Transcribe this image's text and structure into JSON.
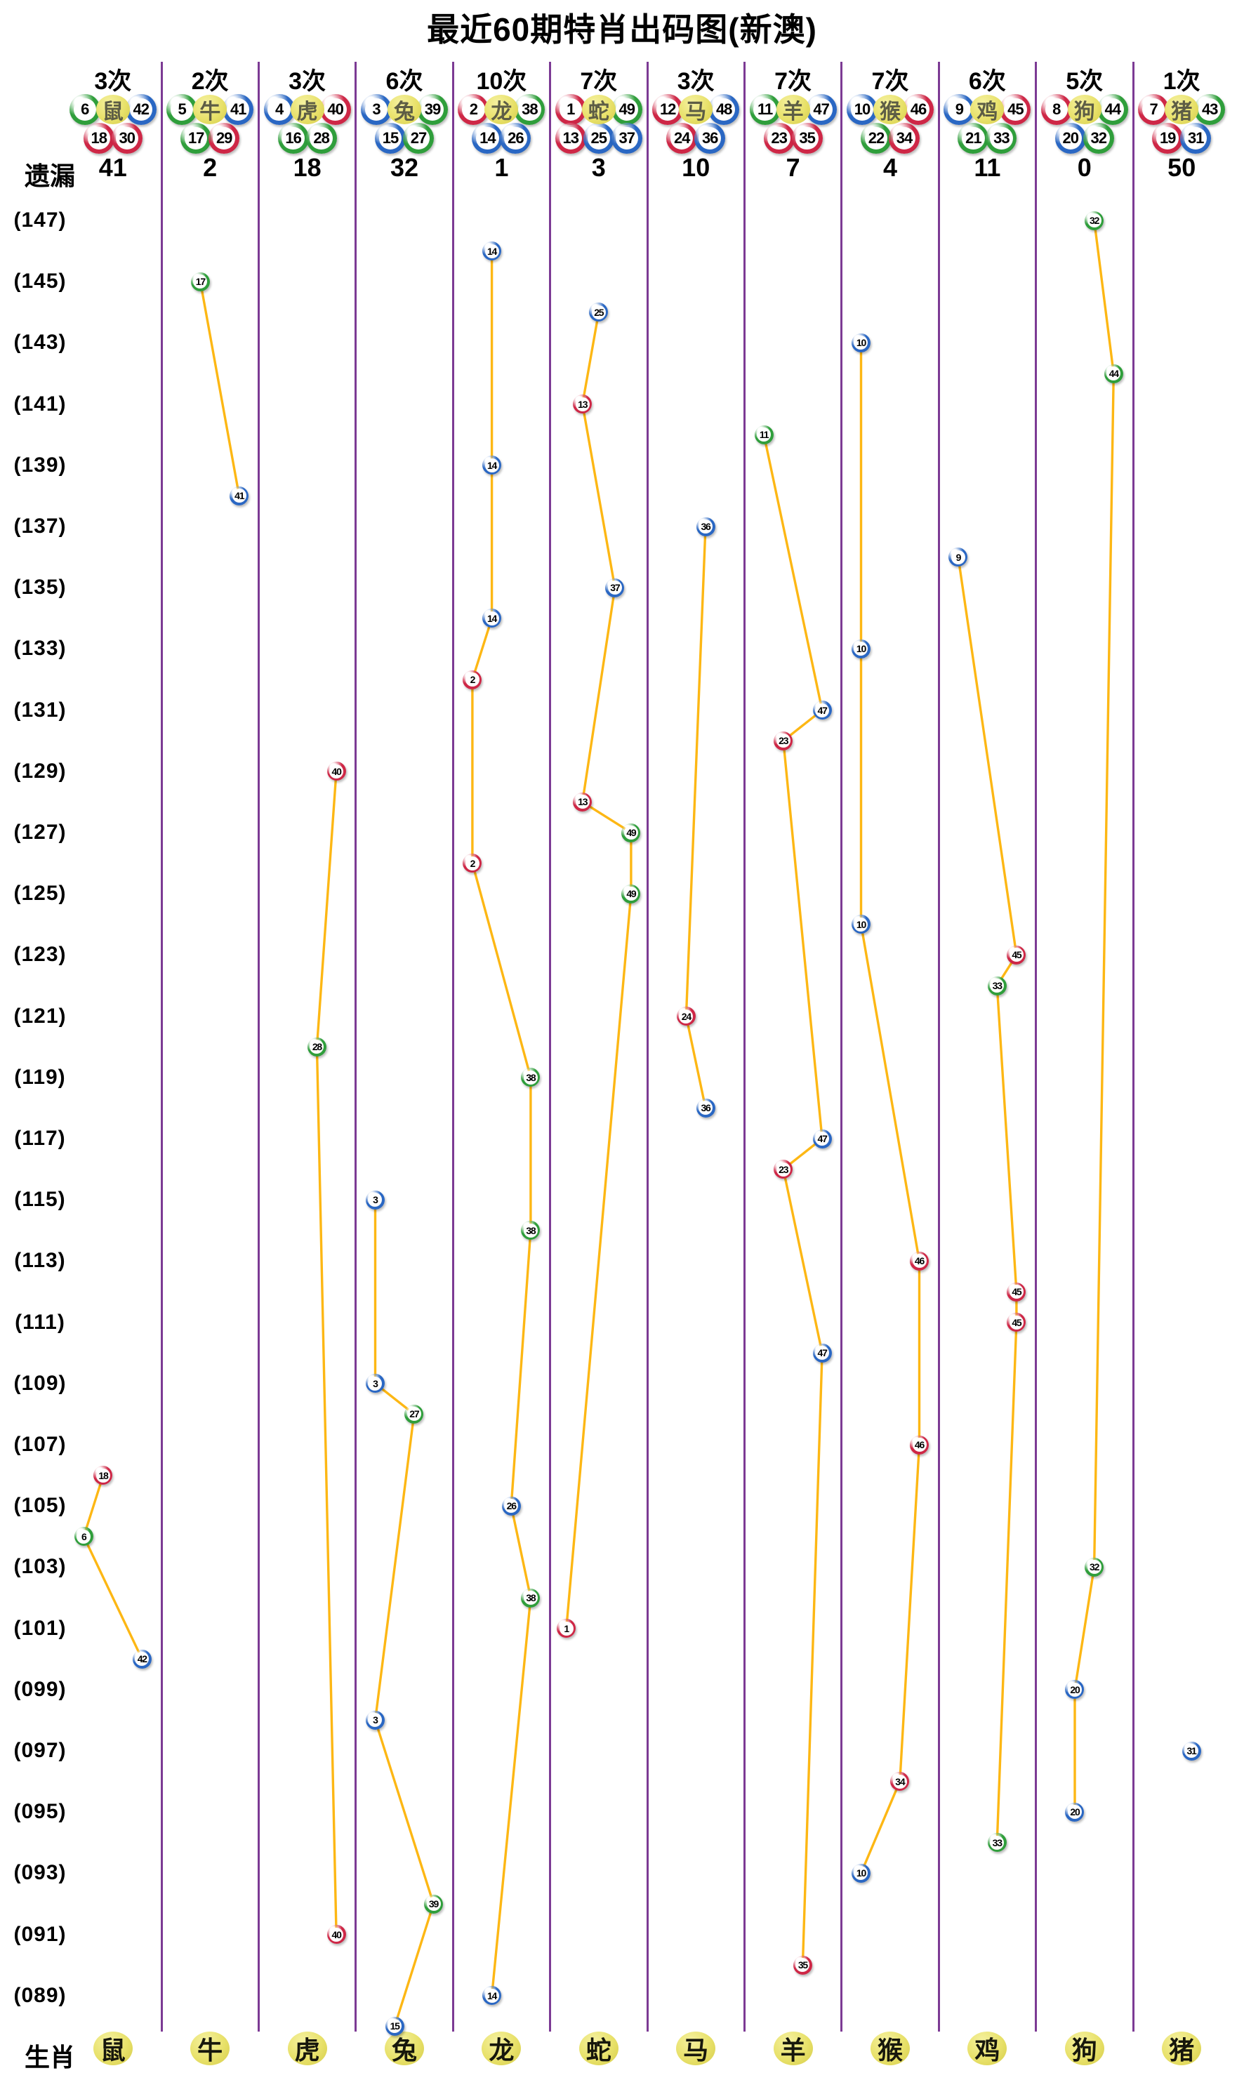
{
  "title": "最近60期特肖出码图(新澳)",
  "header": {
    "missing_label": "遗漏",
    "zodiac_row_label": "生肖"
  },
  "colors": {
    "ball_red": "#ce2746",
    "ball_blue": "#2a67c3",
    "ball_green": "#2f9e3b",
    "line": "#fdb714",
    "divider": "#7c3a94",
    "tag_bg": "#e8e16a",
    "tag_text_header": "#5d5d45",
    "tag_text_bottom": "#17170c",
    "text": "#000000"
  },
  "number_colors": {
    "red": [
      1,
      2,
      7,
      8,
      12,
      13,
      18,
      19,
      23,
      24,
      29,
      30,
      34,
      35,
      40,
      45,
      46
    ],
    "blue": [
      3,
      4,
      9,
      10,
      14,
      15,
      20,
      25,
      26,
      31,
      36,
      37,
      41,
      42,
      47,
      48
    ],
    "green": [
      5,
      6,
      11,
      16,
      17,
      21,
      22,
      27,
      28,
      32,
      33,
      38,
      39,
      43,
      44,
      49
    ]
  },
  "period_labels": [
    "(147)",
    "(145)",
    "(143)",
    "(141)",
    "(139)",
    "(137)",
    "(135)",
    "(133)",
    "(131)",
    "(129)",
    "(127)",
    "(125)",
    "(123)",
    "(121)",
    "(119)",
    "(117)",
    "(115)",
    "(113)",
    "(111)",
    "(109)",
    "(107)",
    "(105)",
    "(103)",
    "(101)",
    "(099)",
    "(097)",
    "(095)",
    "(093)",
    "(091)",
    "(089)"
  ],
  "chart_data": {
    "type": "scatter",
    "title": "最近60期特肖出码图(新澳)",
    "y_axis": {
      "top_period": 147,
      "bottom_period": 88,
      "tick_step": 2
    },
    "legend": "one ball per draw period; columns are the 12 zodiac signs; value shown is the drawn number",
    "columns": [
      {
        "zodiac": "鼠",
        "count_label": "3次",
        "missing": "41",
        "numbers": [
          6,
          18,
          30,
          42
        ],
        "header_top": [
          6,
          42
        ],
        "header_bottom": [
          18,
          30
        ],
        "points": [
          [
            106,
            18
          ],
          [
            104,
            6
          ],
          [
            100,
            42
          ]
        ]
      },
      {
        "zodiac": "牛",
        "count_label": "2次",
        "missing": "2",
        "numbers": [
          5,
          17,
          29,
          41
        ],
        "header_top": [
          5,
          41
        ],
        "header_bottom": [
          17,
          29
        ],
        "points": [
          [
            145,
            17
          ],
          [
            138,
            41
          ]
        ]
      },
      {
        "zodiac": "虎",
        "count_label": "3次",
        "missing": "18",
        "numbers": [
          4,
          16,
          28,
          40
        ],
        "header_top": [
          4,
          40
        ],
        "header_bottom": [
          16,
          28
        ],
        "points": [
          [
            129,
            40
          ],
          [
            120,
            28
          ],
          [
            91,
            40
          ]
        ]
      },
      {
        "zodiac": "兔",
        "count_label": "6次",
        "missing": "32",
        "numbers": [
          3,
          15,
          27,
          39
        ],
        "header_top": [
          3,
          39
        ],
        "header_bottom": [
          15,
          27
        ],
        "points": [
          [
            115,
            3
          ],
          [
            109,
            3
          ],
          [
            108,
            27
          ],
          [
            98,
            3
          ],
          [
            92,
            39
          ],
          [
            88,
            15
          ]
        ]
      },
      {
        "zodiac": "龙",
        "count_label": "10次",
        "missing": "1",
        "numbers": [
          2,
          14,
          26,
          38
        ],
        "header_top": [
          2,
          38
        ],
        "header_bottom": [
          14,
          26
        ],
        "points": [
          [
            146,
            14
          ],
          [
            139,
            14
          ],
          [
            134,
            14
          ],
          [
            132,
            2
          ],
          [
            126,
            2
          ],
          [
            119,
            38
          ],
          [
            114,
            38
          ],
          [
            105,
            26
          ],
          [
            102,
            38
          ],
          [
            89,
            14
          ]
        ]
      },
      {
        "zodiac": "蛇",
        "count_label": "7次",
        "missing": "3",
        "numbers": [
          1,
          13,
          25,
          37,
          49
        ],
        "header_top": [
          1,
          49
        ],
        "header_bottom": [
          13,
          25,
          37
        ],
        "points": [
          [
            144,
            25
          ],
          [
            141,
            13
          ],
          [
            135,
            37
          ],
          [
            128,
            13
          ],
          [
            127,
            49
          ],
          [
            125,
            49
          ],
          [
            101,
            1
          ]
        ]
      },
      {
        "zodiac": "马",
        "count_label": "3次",
        "missing": "10",
        "numbers": [
          12,
          24,
          36,
          48
        ],
        "header_top": [
          12,
          48
        ],
        "header_bottom": [
          24,
          36
        ],
        "points": [
          [
            137,
            36
          ],
          [
            121,
            24
          ],
          [
            118,
            36
          ]
        ]
      },
      {
        "zodiac": "羊",
        "count_label": "7次",
        "missing": "7",
        "numbers": [
          11,
          23,
          35,
          47
        ],
        "header_top": [
          11,
          47
        ],
        "header_bottom": [
          23,
          35
        ],
        "points": [
          [
            140,
            11
          ],
          [
            131,
            47
          ],
          [
            130,
            23
          ],
          [
            117,
            47
          ],
          [
            116,
            23
          ],
          [
            110,
            47
          ],
          [
            90,
            35
          ]
        ]
      },
      {
        "zodiac": "猴",
        "count_label": "7次",
        "missing": "4",
        "numbers": [
          10,
          22,
          34,
          46
        ],
        "header_top": [
          10,
          46
        ],
        "header_bottom": [
          22,
          34
        ],
        "points": [
          [
            143,
            10
          ],
          [
            133,
            10
          ],
          [
            124,
            10
          ],
          [
            113,
            46
          ],
          [
            107,
            46
          ],
          [
            96,
            34
          ],
          [
            93,
            10
          ]
        ]
      },
      {
        "zodiac": "鸡",
        "count_label": "6次",
        "missing": "11",
        "numbers": [
          9,
          21,
          33,
          45
        ],
        "header_top": [
          9,
          45
        ],
        "header_bottom": [
          21,
          33
        ],
        "points": [
          [
            136,
            9
          ],
          [
            123,
            45
          ],
          [
            122,
            33
          ],
          [
            112,
            45
          ],
          [
            111,
            45
          ],
          [
            94,
            33
          ]
        ]
      },
      {
        "zodiac": "狗",
        "count_label": "5次",
        "missing": "0",
        "numbers": [
          8,
          20,
          32,
          44
        ],
        "header_top": [
          8,
          44
        ],
        "header_bottom": [
          20,
          32
        ],
        "points": [
          [
            147,
            32
          ],
          [
            142,
            44
          ],
          [
            103,
            32
          ],
          [
            99,
            20
          ],
          [
            95,
            20
          ]
        ]
      },
      {
        "zodiac": "猪",
        "count_label": "1次",
        "missing": "50",
        "numbers": [
          7,
          19,
          31,
          43
        ],
        "header_top": [
          7,
          43
        ],
        "header_bottom": [
          19,
          31
        ],
        "points": [
          [
            97,
            31
          ]
        ]
      }
    ]
  }
}
